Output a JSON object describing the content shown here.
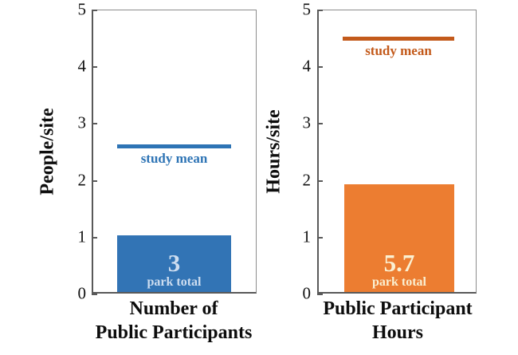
{
  "figure": {
    "background": "#ffffff"
  },
  "chart_data": [
    {
      "type": "bar",
      "title": "",
      "xlabel": "Number of Public Participants",
      "xlabel_lines": [
        "Number of",
        "Public Participants"
      ],
      "ylabel": "People/site",
      "ylim": [
        0,
        5
      ],
      "yticks": [
        0,
        1,
        2,
        3,
        4,
        5
      ],
      "categories": [
        "park total"
      ],
      "values": [
        1.0
      ],
      "bar_color": "#3274B5",
      "bar_label_color": "#CDDDF0",
      "bar_annotation_value": "3",
      "bar_annotation_caption": "park total",
      "reference_line": {
        "label": "study mean",
        "value": 2.6,
        "color": "#2E74B5"
      },
      "grid": false,
      "legend": false
    },
    {
      "type": "bar",
      "title": "",
      "xlabel": "Public Participant Hours",
      "xlabel_lines": [
        "Public Participant",
        "Hours"
      ],
      "ylabel": "Hours/site",
      "ylim": [
        0,
        5
      ],
      "yticks": [
        0,
        1,
        2,
        3,
        4,
        5
      ],
      "categories": [
        "park total"
      ],
      "values": [
        1.9
      ],
      "bar_color": "#EC7D31",
      "bar_label_color": "#FAF0D2",
      "bar_annotation_value": "5.7",
      "bar_annotation_caption": "park total",
      "reference_line": {
        "label": "study mean",
        "value": 4.5,
        "color": "#C35A1B"
      },
      "grid": false,
      "legend": false
    }
  ]
}
